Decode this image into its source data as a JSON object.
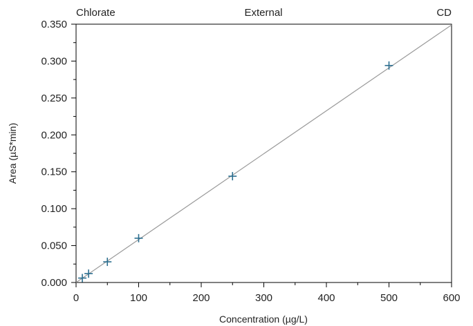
{
  "colors": {
    "point": "#2b6e8f",
    "fit_line": "#9a9a9a",
    "axis": "#000000"
  },
  "header": {
    "left": "Chlorate",
    "center": "External",
    "right": "CD"
  },
  "chart_data": {
    "type": "scatter",
    "title": "",
    "xlabel": "Concentration (µg/L)",
    "ylabel": "Area (µS*min)",
    "xlim": [
      0,
      600
    ],
    "ylim": [
      0,
      0.35
    ],
    "xticks": [
      0,
      100,
      200,
      300,
      400,
      500,
      600
    ],
    "xtick_labels": [
      "0",
      "100",
      "200",
      "300",
      "400",
      "500",
      "600"
    ],
    "yticks": [
      0,
      0.05,
      0.1,
      0.15,
      0.2,
      0.25,
      0.3,
      0.35
    ],
    "ytick_labels": [
      "0.000",
      "0.050",
      "0.100",
      "0.150",
      "0.200",
      "0.250",
      "0.300",
      "0.350"
    ],
    "grid": false,
    "points": {
      "x": [
        10,
        20,
        50,
        100,
        250,
        500
      ],
      "y": [
        0.006,
        0.012,
        0.028,
        0.06,
        0.144,
        0.294
      ]
    },
    "fit_line": {
      "x": [
        0,
        600
      ],
      "y": [
        0.0,
        0.349
      ]
    }
  }
}
